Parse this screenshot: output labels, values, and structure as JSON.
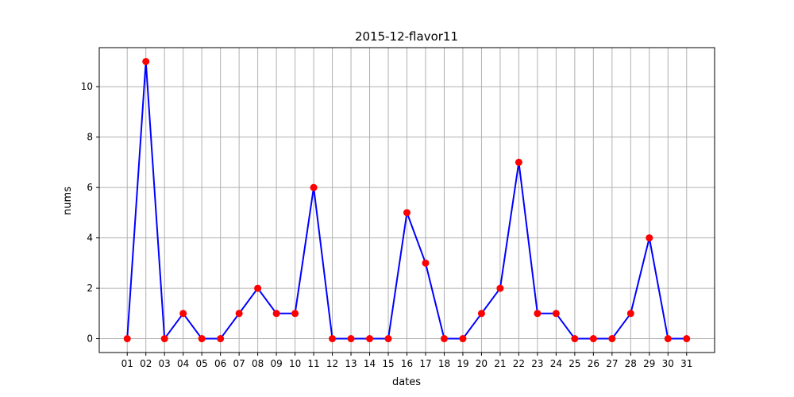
{
  "chart_data": {
    "type": "line",
    "title": "2015-12-flavor11",
    "xlabel": "dates",
    "ylabel": "nums",
    "categories": [
      "01",
      "02",
      "03",
      "04",
      "05",
      "06",
      "07",
      "08",
      "09",
      "10",
      "11",
      "12",
      "13",
      "14",
      "15",
      "16",
      "17",
      "18",
      "19",
      "20",
      "21",
      "22",
      "23",
      "24",
      "25",
      "26",
      "27",
      "28",
      "29",
      "30",
      "31"
    ],
    "series": [
      {
        "values": [
          0,
          11,
          0,
          1,
          0,
          0,
          1,
          2,
          1,
          1,
          6,
          0,
          0,
          0,
          0,
          5,
          3,
          0,
          0,
          1,
          2,
          7,
          1,
          1,
          0,
          0,
          0,
          1,
          4,
          0,
          0
        ],
        "line_color": "#0000ff",
        "marker_color": "#ff0000"
      }
    ],
    "ylim": [
      -0.55,
      11.55
    ],
    "yticks": [
      0,
      2,
      4,
      6,
      8,
      10
    ],
    "grid": true
  }
}
